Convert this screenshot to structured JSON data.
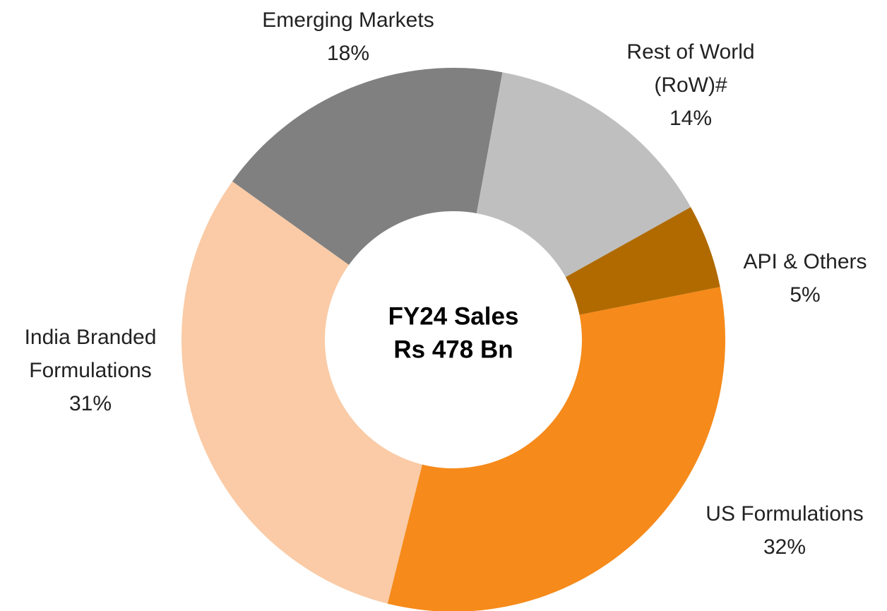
{
  "chart_data": {
    "type": "donut",
    "center_label": [
      "FY24 Sales",
      "Rs 478 Bn"
    ],
    "categories": [
      "Rest of World (RoW)#",
      "API & Others",
      "US Formulations",
      "India Branded Formulations",
      "Emerging Markets"
    ],
    "values": [
      14,
      5,
      32,
      31,
      18
    ],
    "value_labels": [
      "14%",
      "5%",
      "32%",
      "31%",
      "18%"
    ],
    "colors": [
      "#bfbfbf",
      "#b06a00",
      "#f68a1a",
      "#facba6",
      "#808080"
    ]
  }
}
